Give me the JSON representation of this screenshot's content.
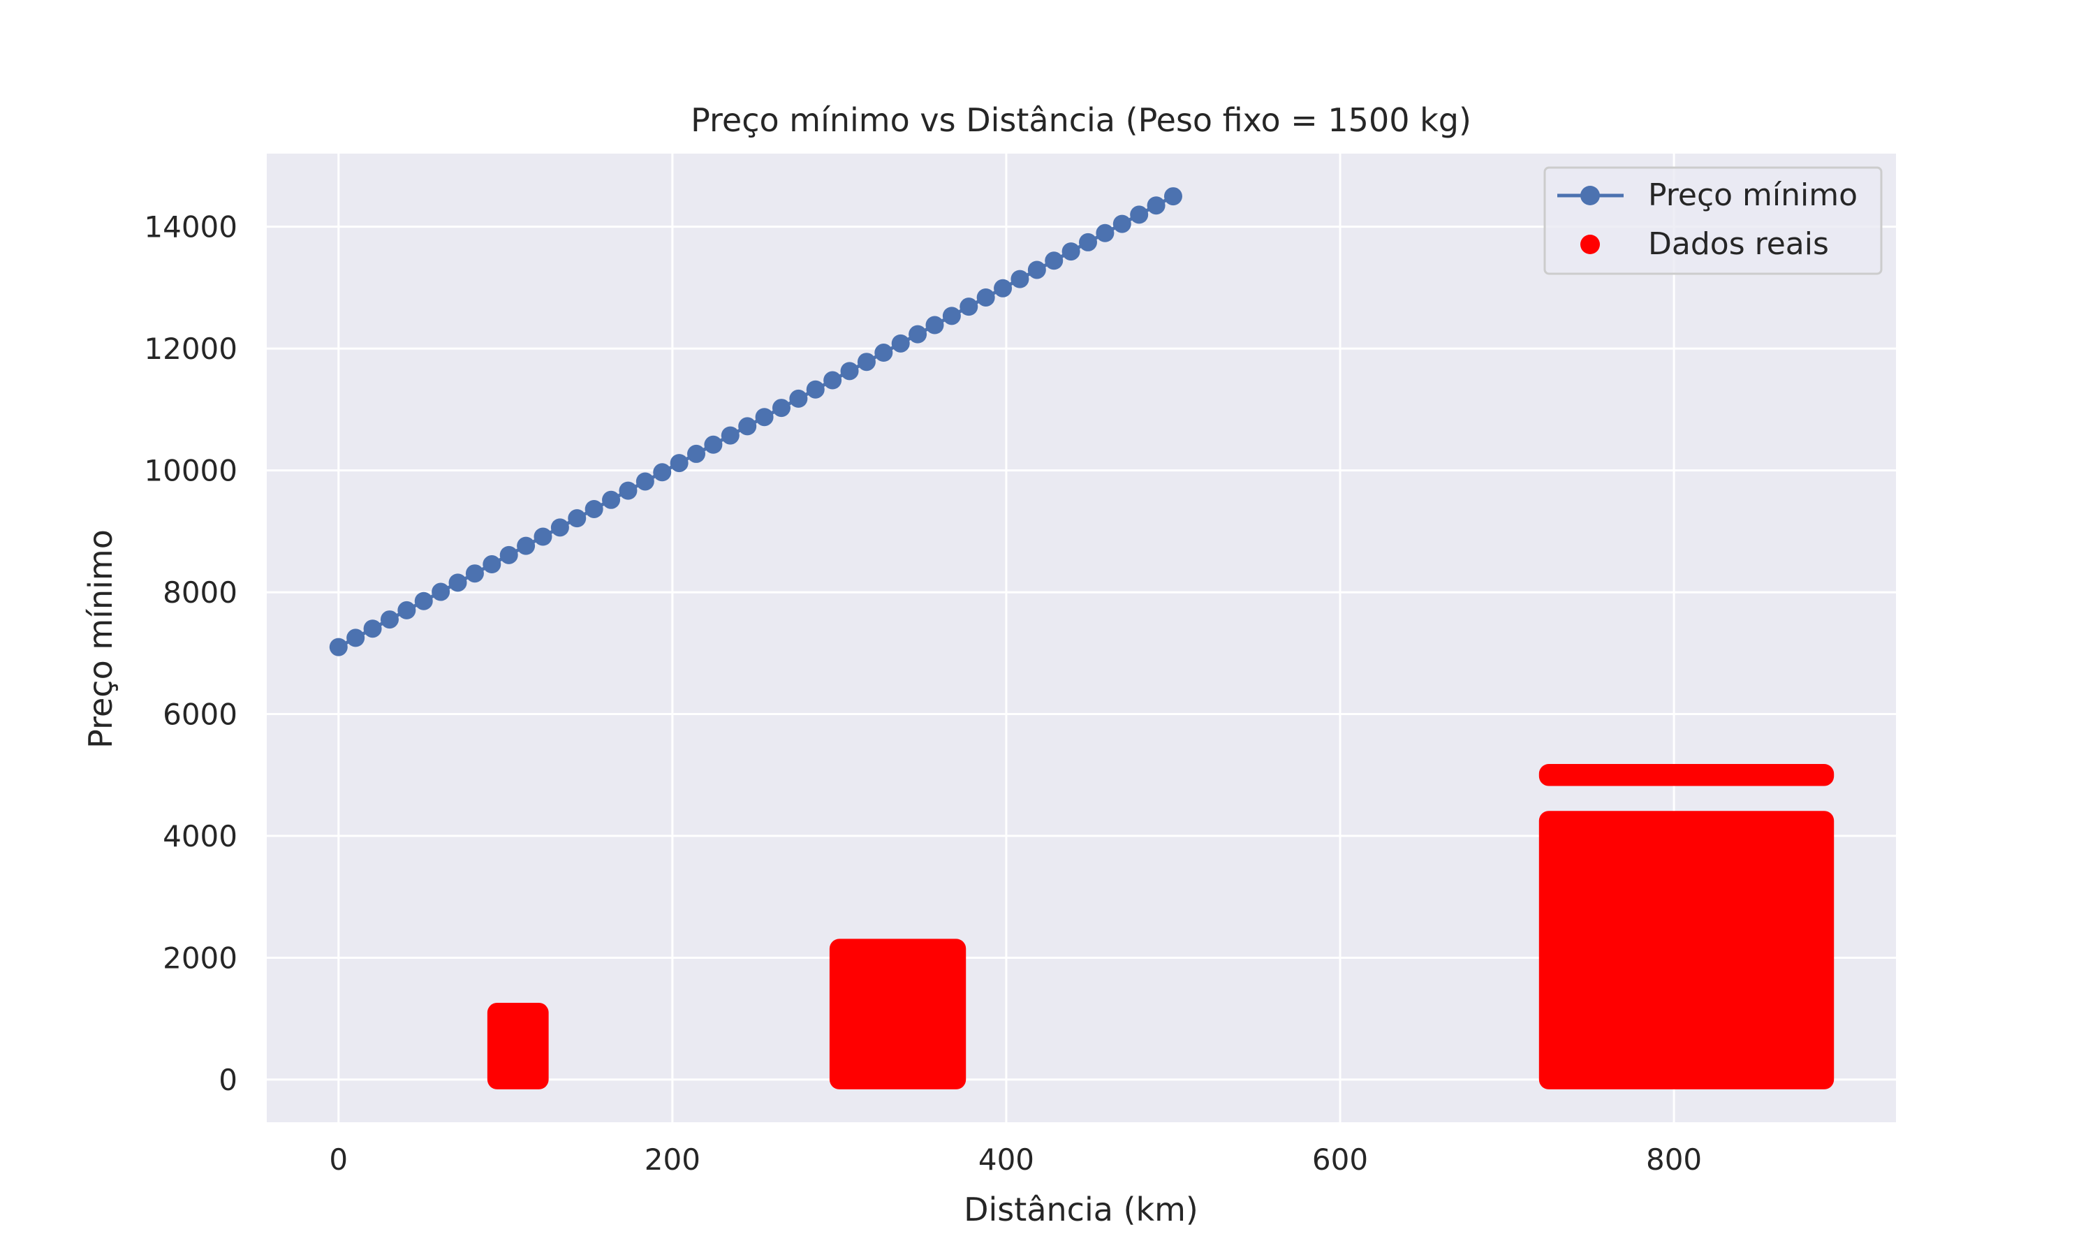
{
  "chart_data": {
    "type": "scatter",
    "title": "Preço mínimo vs Distância (Peso fixo = 1500 kg)",
    "xlabel": "Distância (km)",
    "ylabel": "Preço mínimo",
    "xlim": [
      -43,
      933
    ],
    "ylim": [
      -700,
      15200
    ],
    "xticks": [
      0,
      200,
      400,
      600,
      800
    ],
    "yticks": [
      0,
      2000,
      4000,
      6000,
      8000,
      10000,
      12000,
      14000
    ],
    "grid": true,
    "background": "#eaeaf2",
    "legend_position": "upper right",
    "series": [
      {
        "name": "Preço mínimo",
        "kind": "line-marker",
        "color": "#4c72b0",
        "x_start": 0,
        "x_end": 500,
        "points": 50,
        "y_start": 7100,
        "y_end": 14500
      },
      {
        "name": "Dados reais",
        "kind": "scatter-cluster",
        "color": "#ff0000",
        "clusters": [
          {
            "x_range": [
              95,
              120
            ],
            "y_range": [
              0,
              1100
            ]
          },
          {
            "x_range": [
              300,
              370
            ],
            "y_range": [
              0,
              2150
            ]
          },
          {
            "x_range": [
              725,
              890
            ],
            "y_range": [
              0,
              4250
            ]
          },
          {
            "x_range": [
              725,
              890
            ],
            "y_range": [
              4980,
              5020
            ]
          }
        ]
      }
    ]
  }
}
